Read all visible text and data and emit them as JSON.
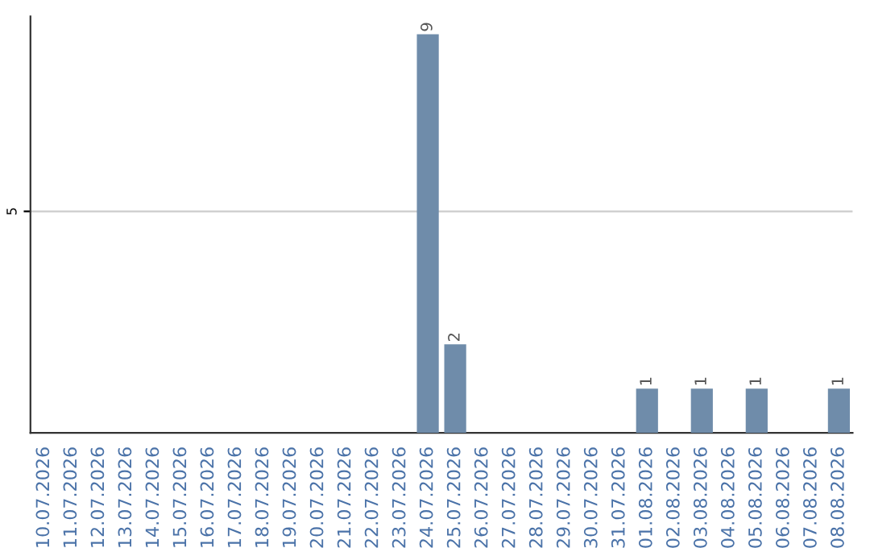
{
  "chart_data": {
    "type": "bar",
    "categories": [
      "10.07.2026",
      "11.07.2026",
      "12.07.2026",
      "13.07.2026",
      "14.07.2026",
      "15.07.2026",
      "16.07.2026",
      "17.07.2026",
      "18.07.2026",
      "19.07.2026",
      "20.07.2026",
      "21.07.2026",
      "22.07.2026",
      "23.07.2026",
      "24.07.2026",
      "25.07.2026",
      "26.07.2026",
      "27.07.2026",
      "28.07.2026",
      "29.07.2026",
      "30.07.2026",
      "31.07.2026",
      "01.08.2026",
      "02.08.2026",
      "03.08.2026",
      "04.08.2026",
      "05.08.2026",
      "06.08.2026",
      "07.08.2026",
      "08.08.2026"
    ],
    "values": [
      null,
      null,
      null,
      null,
      null,
      null,
      null,
      null,
      null,
      null,
      null,
      null,
      null,
      null,
      9,
      2,
      null,
      null,
      null,
      null,
      null,
      null,
      1,
      null,
      1,
      null,
      1,
      null,
      null,
      1
    ],
    "data_labels": true,
    "color": "#6f8caa",
    "ylim": [
      0,
      9.4
    ],
    "yticks": [
      5
    ],
    "grid": "y",
    "legend": false
  }
}
